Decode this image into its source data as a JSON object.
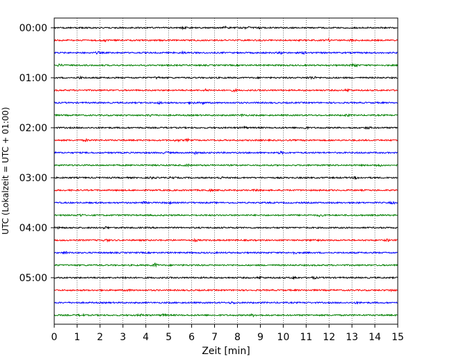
{
  "chart_data": {
    "type": "line",
    "title": "",
    "xlabel": "Zeit  [min]",
    "ylabel": "UTC (Lokalzeit = UTC + 01:00)",
    "xlim": [
      0,
      15
    ],
    "x_ticks": [
      "0",
      "1",
      "2",
      "3",
      "4",
      "5",
      "6",
      "7",
      "8",
      "9",
      "10",
      "11",
      "12",
      "13",
      "14",
      "15"
    ],
    "y_tick_labels": [
      "00:00",
      "01:00",
      "02:00",
      "03:00",
      "04:00",
      "05:00"
    ],
    "grid": "vertical dotted",
    "trace_interval_minutes": 15,
    "trace_count": 24,
    "trace_colors": [
      "#000000",
      "#ff0000",
      "#0000ff",
      "#008000"
    ],
    "legend": "none"
  }
}
